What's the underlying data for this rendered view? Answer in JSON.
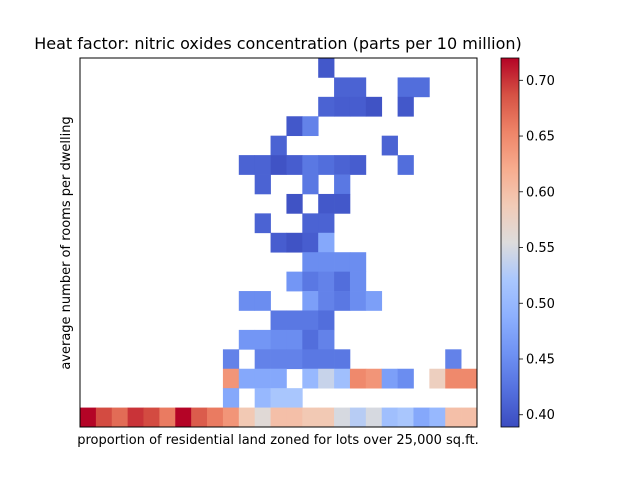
{
  "chart_data": {
    "type": "heatmap",
    "title": "Heat factor: nitric oxides concentration (parts per 10 million)",
    "xlabel": "proportion of residential land zoned for lots over 25,000 sq.ft.",
    "ylabel": "average number of rooms per dwelling",
    "x_ticks": [],
    "y_ticks": [],
    "colormap": "coolwarm",
    "colorbar": {
      "vmin": 0.389,
      "vmax": 0.72,
      "ticks": [
        "0.40",
        "0.45",
        "0.50",
        "0.55",
        "0.60",
        "0.65",
        "0.70"
      ],
      "tick_values": [
        0.4,
        0.45,
        0.5,
        0.55,
        0.6,
        0.65,
        0.7
      ]
    },
    "n_cols": 25,
    "n_rows": 19,
    "rows_top_to_bottom": [
      [
        null,
        null,
        null,
        null,
        null,
        null,
        null,
        null,
        null,
        null,
        null,
        null,
        null,
        null,
        null,
        0.4,
        null,
        null,
        null,
        null,
        null,
        null,
        null,
        null,
        null
      ],
      [
        null,
        null,
        null,
        null,
        null,
        null,
        null,
        null,
        null,
        null,
        null,
        null,
        null,
        null,
        null,
        null,
        0.41,
        0.41,
        null,
        null,
        0.42,
        0.42,
        null,
        null,
        null
      ],
      [
        null,
        null,
        null,
        null,
        null,
        null,
        null,
        null,
        null,
        null,
        null,
        null,
        null,
        null,
        null,
        0.41,
        0.405,
        0.405,
        0.395,
        null,
        0.4,
        null,
        null,
        null,
        null
      ],
      [
        null,
        null,
        null,
        null,
        null,
        null,
        null,
        null,
        null,
        null,
        null,
        null,
        null,
        0.4,
        0.44,
        null,
        null,
        null,
        null,
        null,
        null,
        null,
        null,
        null,
        null
      ],
      [
        null,
        null,
        null,
        null,
        null,
        null,
        null,
        null,
        null,
        null,
        null,
        null,
        0.41,
        null,
        null,
        null,
        null,
        null,
        null,
        0.41,
        null,
        null,
        null,
        null,
        null
      ],
      [
        null,
        null,
        null,
        null,
        null,
        null,
        null,
        null,
        null,
        null,
        0.41,
        0.41,
        0.395,
        0.405,
        0.43,
        0.42,
        0.41,
        0.405,
        null,
        null,
        0.42,
        null,
        null,
        null,
        null
      ],
      [
        null,
        null,
        null,
        null,
        null,
        null,
        null,
        null,
        null,
        null,
        null,
        0.41,
        null,
        null,
        0.43,
        null,
        0.43,
        null,
        null,
        null,
        null,
        null,
        null,
        null,
        null
      ],
      [
        null,
        null,
        null,
        null,
        null,
        null,
        null,
        null,
        null,
        null,
        null,
        null,
        null,
        0.395,
        null,
        0.4,
        0.4,
        null,
        null,
        null,
        null,
        null,
        null,
        null,
        null
      ],
      [
        null,
        null,
        null,
        null,
        null,
        null,
        null,
        null,
        null,
        null,
        null,
        0.41,
        null,
        null,
        0.41,
        0.41,
        null,
        null,
        null,
        null,
        null,
        null,
        null,
        null,
        null
      ],
      [
        null,
        null,
        null,
        null,
        null,
        null,
        null,
        null,
        null,
        null,
        null,
        null,
        0.405,
        0.395,
        0.405,
        0.48,
        null,
        null,
        null,
        null,
        null,
        null,
        null,
        null,
        null
      ],
      [
        null,
        null,
        null,
        null,
        null,
        null,
        null,
        null,
        null,
        null,
        null,
        null,
        null,
        null,
        0.45,
        0.45,
        0.45,
        0.45,
        null,
        null,
        null,
        null,
        null,
        null,
        null
      ],
      [
        null,
        null,
        null,
        null,
        null,
        null,
        null,
        null,
        null,
        null,
        null,
        null,
        null,
        0.46,
        0.43,
        0.44,
        0.42,
        0.45,
        null,
        null,
        null,
        null,
        null,
        null,
        null
      ],
      [
        null,
        null,
        null,
        null,
        null,
        null,
        null,
        null,
        null,
        null,
        0.45,
        0.45,
        null,
        null,
        0.47,
        0.44,
        0.43,
        0.45,
        0.47,
        null,
        null,
        null,
        null,
        null,
        null
      ],
      [
        null,
        null,
        null,
        null,
        null,
        null,
        null,
        null,
        null,
        null,
        null,
        null,
        0.43,
        0.43,
        0.43,
        0.42,
        null,
        null,
        null,
        null,
        null,
        null,
        null,
        null,
        null
      ],
      [
        null,
        null,
        null,
        null,
        null,
        null,
        null,
        null,
        null,
        null,
        0.46,
        0.46,
        0.45,
        0.45,
        0.42,
        0.44,
        null,
        null,
        null,
        null,
        null,
        null,
        null,
        null,
        null
      ],
      [
        null,
        null,
        null,
        null,
        null,
        null,
        null,
        null,
        null,
        0.44,
        null,
        0.44,
        0.44,
        0.44,
        0.43,
        0.43,
        0.43,
        null,
        null,
        null,
        null,
        null,
        null,
        0.44,
        null
      ],
      [
        null,
        null,
        null,
        null,
        null,
        null,
        null,
        null,
        null,
        0.64,
        0.48,
        0.48,
        0.48,
        null,
        0.5,
        0.54,
        0.51,
        0.65,
        0.64,
        0.47,
        0.45,
        null,
        0.58,
        0.65,
        0.65
      ],
      [
        null,
        null,
        null,
        null,
        null,
        null,
        null,
        null,
        null,
        0.48,
        null,
        0.5,
        0.52,
        0.52,
        null,
        null,
        null,
        null,
        null,
        null,
        null,
        null,
        null,
        null,
        null
      ],
      [
        0.72,
        0.69,
        0.67,
        0.7,
        0.69,
        0.66,
        0.72,
        0.68,
        0.66,
        0.64,
        0.59,
        0.56,
        0.6,
        0.6,
        0.59,
        0.59,
        0.55,
        0.53,
        0.55,
        0.51,
        0.52,
        0.48,
        0.5,
        0.6,
        0.6
      ]
    ]
  }
}
